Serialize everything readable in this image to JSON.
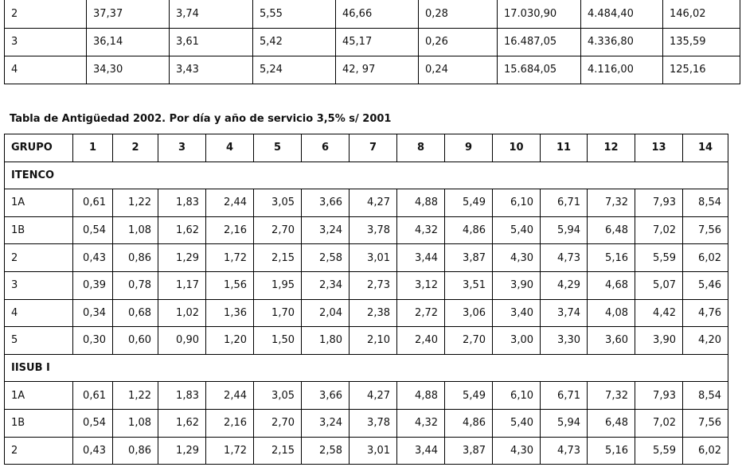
{
  "top_table": {
    "rows": [
      [
        "2",
        "37,37",
        "3,74",
        "5,55",
        "46,66",
        "0,28",
        "17.030,90",
        "4.484,40",
        "146,02"
      ],
      [
        "3",
        "36,14",
        "3,61",
        "5,42",
        "45,17",
        "0,26",
        "16.487,05",
        "4.336,80",
        "135,59"
      ],
      [
        "4",
        "34,30",
        "3,43",
        "5,24",
        "42, 97",
        "0,24",
        "15.684,05",
        "4.116,00",
        "125,16"
      ]
    ]
  },
  "section_title": "Tabla de Antigüedad 2002. Por día y año de servicio 3,5% s/ 2001",
  "main_table": {
    "headers": [
      "GRUPO",
      "1",
      "2",
      "3",
      "4",
      "5",
      "6",
      "7",
      "8",
      "9",
      "10",
      "11",
      "12",
      "13",
      "14"
    ],
    "group1": {
      "name": "ITENCO",
      "rows": [
        [
          "1A",
          "0,61",
          "1,22",
          "1,83",
          "2,44",
          "3,05",
          "3,66",
          "4,27",
          "4,88",
          "5,49",
          "6,10",
          "6,71",
          "7,32",
          "7,93",
          "8,54"
        ],
        [
          "1B",
          "0,54",
          "1,08",
          "1,62",
          "2,16",
          "2,70",
          "3,24",
          "3,78",
          "4,32",
          "4,86",
          "5,40",
          "5,94",
          "6,48",
          "7,02",
          "7,56"
        ],
        [
          "2",
          "0,43",
          "0,86",
          "1,29",
          "1,72",
          "2,15",
          "2,58",
          "3,01",
          "3,44",
          "3,87",
          "4,30",
          "4,73",
          "5,16",
          "5,59",
          "6,02"
        ],
        [
          "3",
          "0,39",
          "0,78",
          "1,17",
          "1,56",
          "1,95",
          "2,34",
          "2,73",
          "3,12",
          "3,51",
          "3,90",
          "4,29",
          "4,68",
          "5,07",
          "5,46"
        ],
        [
          "4",
          "0,34",
          "0,68",
          "1,02",
          "1,36",
          "1,70",
          "2,04",
          "2,38",
          "2,72",
          "3,06",
          "3,40",
          "3,74",
          "4,08",
          "4,42",
          "4,76"
        ],
        [
          "5",
          "0,30",
          "0,60",
          "0,90",
          "1,20",
          "1,50",
          "1,80",
          "2,10",
          "2,40",
          "2,70",
          "3,00",
          "3,30",
          "3,60",
          "3,90",
          "4,20"
        ]
      ]
    },
    "group2": {
      "name": "IISUB I",
      "rows": [
        [
          "1A",
          "0,61",
          "1,22",
          "1,83",
          "2,44",
          "3,05",
          "3,66",
          "4,27",
          "4,88",
          "5,49",
          "6,10",
          "6,71",
          "7,32",
          "7,93",
          "8,54"
        ],
        [
          "1B",
          "0,54",
          "1,08",
          "1,62",
          "2,16",
          "2,70",
          "3,24",
          "3,78",
          "4,32",
          "4,86",
          "5,40",
          "5,94",
          "6,48",
          "7,02",
          "7,56"
        ],
        [
          "2",
          "0,43",
          "0,86",
          "1,29",
          "1,72",
          "2,15",
          "2,58",
          "3,01",
          "3,44",
          "3,87",
          "4,30",
          "4,73",
          "5,16",
          "5,59",
          "6,02"
        ]
      ]
    }
  }
}
